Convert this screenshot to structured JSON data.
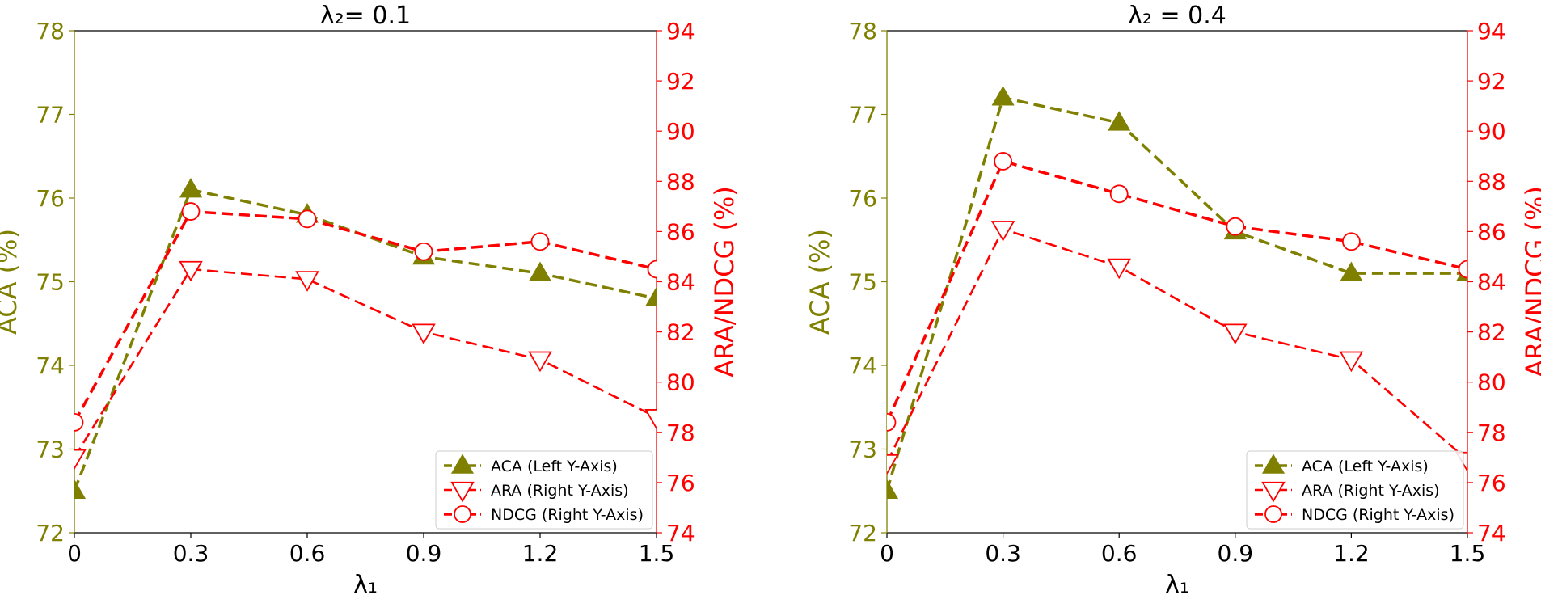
{
  "colors": {
    "left_axis": "#808000",
    "right_axis": "#ff0000",
    "aca": "#808000",
    "ara": "#ff0000",
    "ndcg": "#ff0000"
  },
  "chart_data": [
    {
      "type": "line",
      "title": "λ₂= 0.1",
      "xlabel": "λ₁",
      "ylabel_left": "ACA (%)",
      "ylabel_right": "ARA/NDCG (%)",
      "x": [
        0,
        0.3,
        0.6,
        0.9,
        1.2,
        1.5
      ],
      "x_tick_labels": [
        "0",
        "0.3",
        "0.6",
        "0.9",
        "1.2",
        "1.5"
      ],
      "xlim": [
        0,
        1.5
      ],
      "ylim_left": [
        72,
        78
      ],
      "ylim_right": [
        74,
        94
      ],
      "y_left_ticks": [
        "72",
        "73",
        "74",
        "75",
        "76",
        "77",
        "78"
      ],
      "y_right_ticks": [
        "74",
        "76",
        "78",
        "80",
        "82",
        "84",
        "86",
        "88",
        "90",
        "92",
        "94"
      ],
      "legend_position": "lower-right",
      "grid": false,
      "series": [
        {
          "name": "ACA (Left Y-Axis)",
          "axis": "left",
          "marker": "triangle-up",
          "values": [
            72.5,
            76.1,
            75.8,
            75.3,
            75.1,
            74.8
          ]
        },
        {
          "name": "ARA (Right Y-Axis)",
          "axis": "right",
          "marker": "triangle-down",
          "values": [
            77.0,
            84.5,
            84.1,
            82.0,
            80.9,
            78.6
          ]
        },
        {
          "name": "NDCG (Right Y-Axis)",
          "axis": "right",
          "marker": "circle",
          "values": [
            78.4,
            86.8,
            86.5,
            85.2,
            85.6,
            84.5
          ]
        }
      ]
    },
    {
      "type": "line",
      "title": "λ₂ = 0.4",
      "xlabel": "λ₁",
      "ylabel_left": "ACA (%)",
      "ylabel_right": "ARA/NDCG (%)",
      "x": [
        0,
        0.3,
        0.6,
        0.9,
        1.2,
        1.5
      ],
      "x_tick_labels": [
        "0",
        "0.3",
        "0.6",
        "0.9",
        "1.2",
        "1.5"
      ],
      "xlim": [
        0,
        1.5
      ],
      "ylim_left": [
        72,
        78
      ],
      "ylim_right": [
        74,
        94
      ],
      "y_left_ticks": [
        "72",
        "73",
        "74",
        "75",
        "76",
        "77",
        "78"
      ],
      "y_right_ticks": [
        "74",
        "76",
        "78",
        "80",
        "82",
        "84",
        "86",
        "88",
        "90",
        "92",
        "94"
      ],
      "legend_position": "lower-right",
      "grid": false,
      "series": [
        {
          "name": "ACA (Left Y-Axis)",
          "axis": "left",
          "marker": "triangle-up",
          "values": [
            72.5,
            77.2,
            76.9,
            75.6,
            75.1,
            75.1
          ]
        },
        {
          "name": "ARA (Right Y-Axis)",
          "axis": "right",
          "marker": "triangle-down",
          "values": [
            76.8,
            86.1,
            84.6,
            82.0,
            80.9,
            76.9
          ]
        },
        {
          "name": "NDCG (Right Y-Axis)",
          "axis": "right",
          "marker": "circle",
          "values": [
            78.4,
            88.8,
            87.5,
            86.2,
            85.6,
            84.5
          ]
        }
      ]
    }
  ]
}
